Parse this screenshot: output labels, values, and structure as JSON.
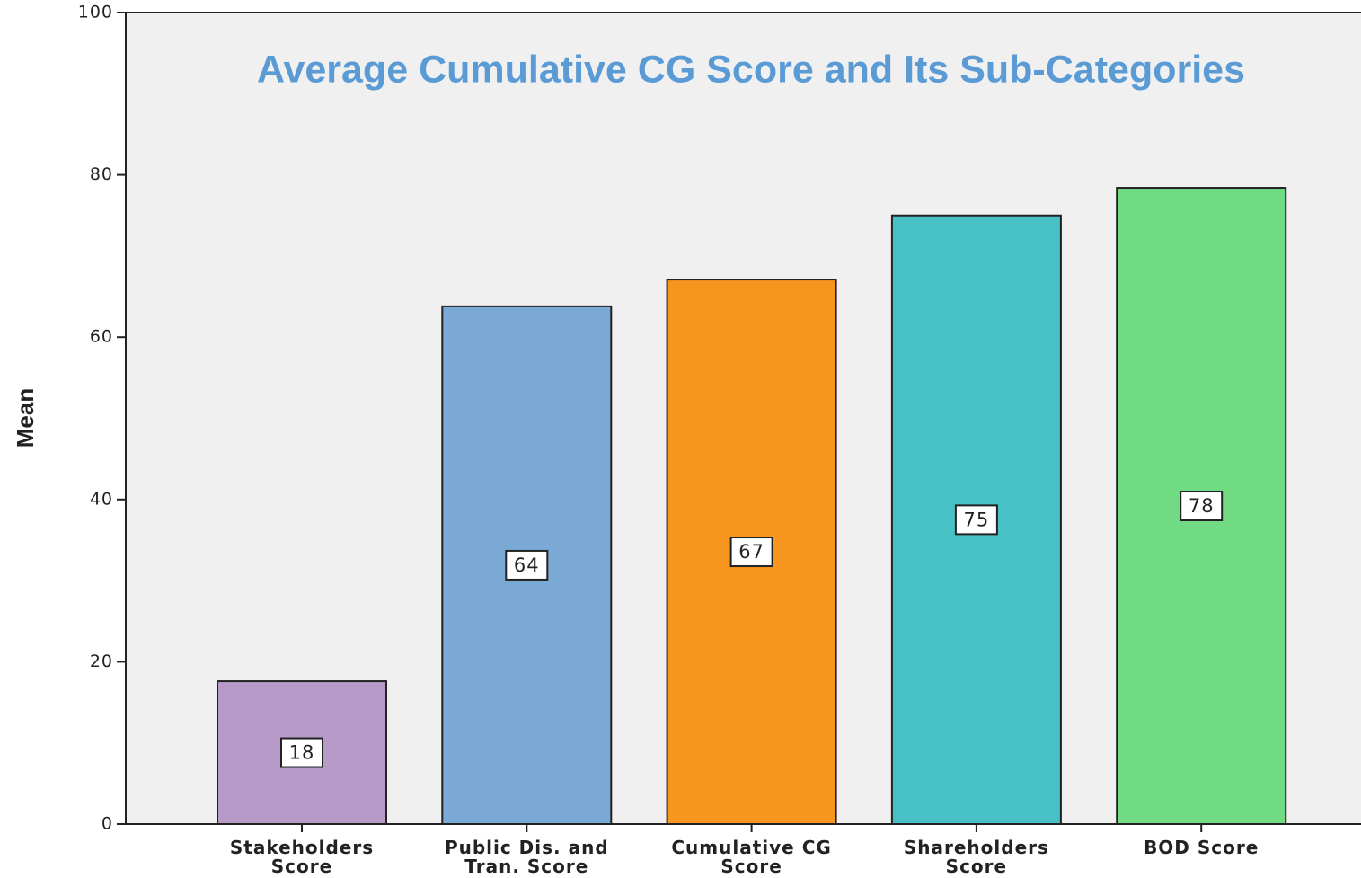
{
  "chart_data": {
    "type": "bar",
    "title": "Average Cumulative CG Score and Its Sub-Categories",
    "y_label": "Mean",
    "categories": [
      "Stakeholders\nScore",
      "Public Dis. and\nTran. Score",
      "Cumulative CG\nScore",
      "Shareholders\nScore",
      "BOD Score"
    ],
    "values": [
      17.6,
      63.8,
      67.1,
      75.0,
      78.4
    ],
    "value_labels": [
      "18",
      "64",
      "67",
      "75",
      "78"
    ],
    "colors": [
      "#b89ac9",
      "#7ba9d6",
      "#f7961f",
      "#48c1c6",
      "#70db82"
    ],
    "ylim": [
      0,
      100
    ],
    "yticks": [
      0,
      20,
      40,
      60,
      80,
      100
    ],
    "grid": false
  }
}
